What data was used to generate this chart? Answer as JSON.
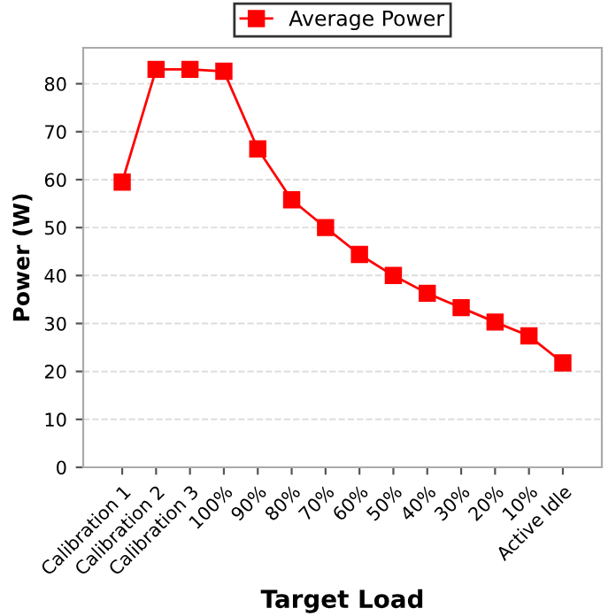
{
  "chart_data": {
    "type": "line",
    "xlabel": "Target Load",
    "ylabel": "Power (W)",
    "categories": [
      "Calibration 1",
      "Calibration 2",
      "Calibration 3",
      "100%",
      "90%",
      "80%",
      "70%",
      "60%",
      "50%",
      "40%",
      "30%",
      "20%",
      "10%",
      "Active Idle"
    ],
    "series": [
      {
        "name": "Average Power",
        "color": "#ff0000",
        "values": [
          59.5,
          83,
          83,
          82.6,
          66.4,
          55.8,
          50,
          44.4,
          40,
          36.3,
          33.3,
          30.3,
          27.4,
          21.8
        ]
      }
    ],
    "ylim": [
      0,
      87.5
    ],
    "yticks": [
      0,
      10,
      20,
      30,
      40,
      50,
      60,
      70,
      80
    ],
    "grid": "y",
    "legend": "top",
    "marker": "square",
    "line_style": "solid"
  }
}
